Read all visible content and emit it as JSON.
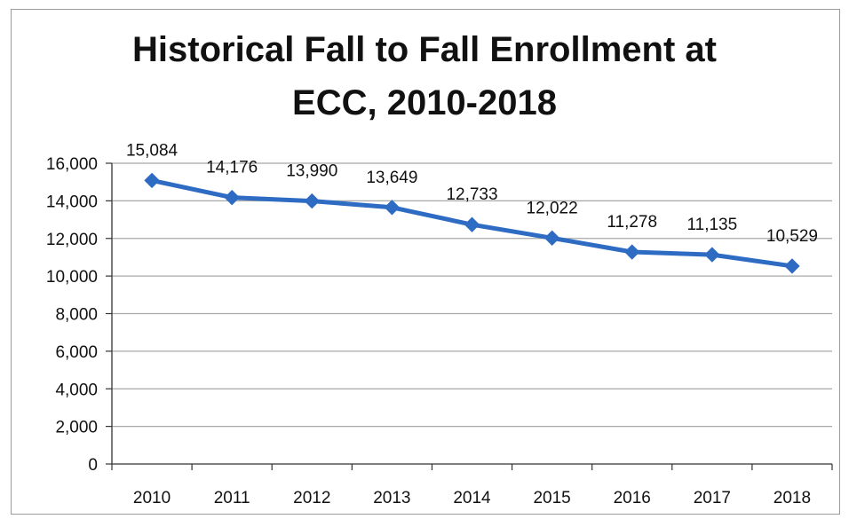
{
  "chart_data": {
    "type": "line",
    "title_lines": [
      "Historical Fall to Fall Enrollment at",
      "ECC, 2010-2018"
    ],
    "categories": [
      "2010",
      "2011",
      "2012",
      "2013",
      "2014",
      "2015",
      "2016",
      "2017",
      "2018"
    ],
    "series": [
      {
        "values": [
          15084,
          14176,
          13990,
          13649,
          12733,
          12022,
          11278,
          11135,
          10529
        ],
        "labels": [
          "15,084",
          "14,176",
          "13,990",
          "13,649",
          "12,733",
          "12,022",
          "11,278",
          "11,135",
          "10,529"
        ],
        "color": "#2e6bc2"
      }
    ],
    "y_ticks": [
      "0",
      "2,000",
      "4,000",
      "6,000",
      "8,000",
      "10,000",
      "12,000",
      "14,000",
      "16,000"
    ],
    "ylim": [
      0,
      16000
    ],
    "ystep": 2000,
    "grid": true,
    "gridColor": "#a8a8a8",
    "legend": "none"
  }
}
